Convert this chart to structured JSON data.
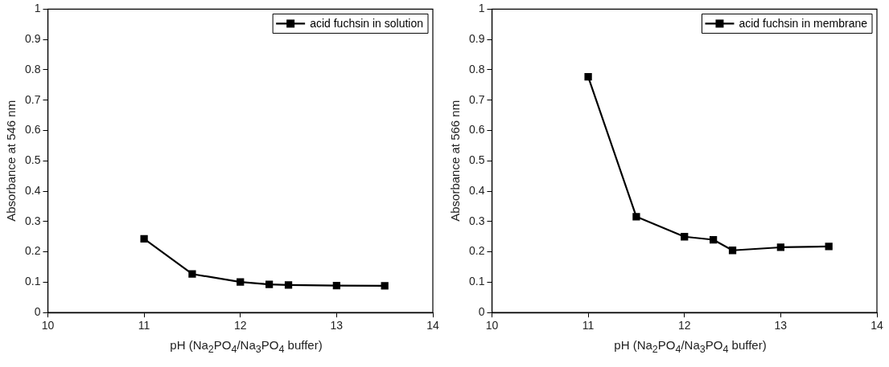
{
  "chart_data": [
    {
      "type": "line",
      "xlabel": "pH (Na$_{2}$PO$_{4}$/Na$_{3}$PO$_{4}$ buffer)",
      "ylabel": "Absorbance at 546 nm",
      "x": [
        11,
        11.5,
        12,
        12.3,
        12.5,
        13,
        13.5
      ],
      "series": [
        {
          "name": "acid fuchsin in solution",
          "color": "#000000",
          "values": [
            0.243,
            0.127,
            0.101,
            0.093,
            0.091,
            0.089,
            0.088
          ]
        }
      ],
      "xlim": [
        10,
        14
      ],
      "xticks": [
        10,
        11,
        12,
        13,
        14
      ],
      "ylim": [
        0,
        1
      ],
      "yticks": [
        0,
        0.1,
        0.2,
        0.3,
        0.4,
        0.5,
        0.6,
        0.7,
        0.8,
        0.9,
        1
      ],
      "grid": false,
      "legend": "top right",
      "marker": "square",
      "line_style": "solid"
    },
    {
      "type": "line",
      "xlabel": "pH (Na$_{2}$PO$_{4}$/Na$_{3}$PO$_{4}$ buffer)",
      "ylabel": "Absorbance at 566 nm",
      "x": [
        11,
        11.5,
        12,
        12.3,
        12.5,
        13,
        13.5
      ],
      "series": [
        {
          "name": "acid fuchsin in membrane",
          "color": "#000000",
          "values": [
            0.777,
            0.316,
            0.25,
            0.24,
            0.205,
            0.215,
            0.218
          ]
        }
      ],
      "xlim": [
        10,
        14
      ],
      "xticks": [
        10,
        11,
        12,
        13,
        14
      ],
      "ylim": [
        0,
        1
      ],
      "yticks": [
        0,
        0.1,
        0.2,
        0.3,
        0.4,
        0.5,
        0.6,
        0.7,
        0.8,
        0.9,
        1
      ],
      "grid": false,
      "legend": "top right",
      "marker": "square",
      "line_style": "solid"
    }
  ]
}
